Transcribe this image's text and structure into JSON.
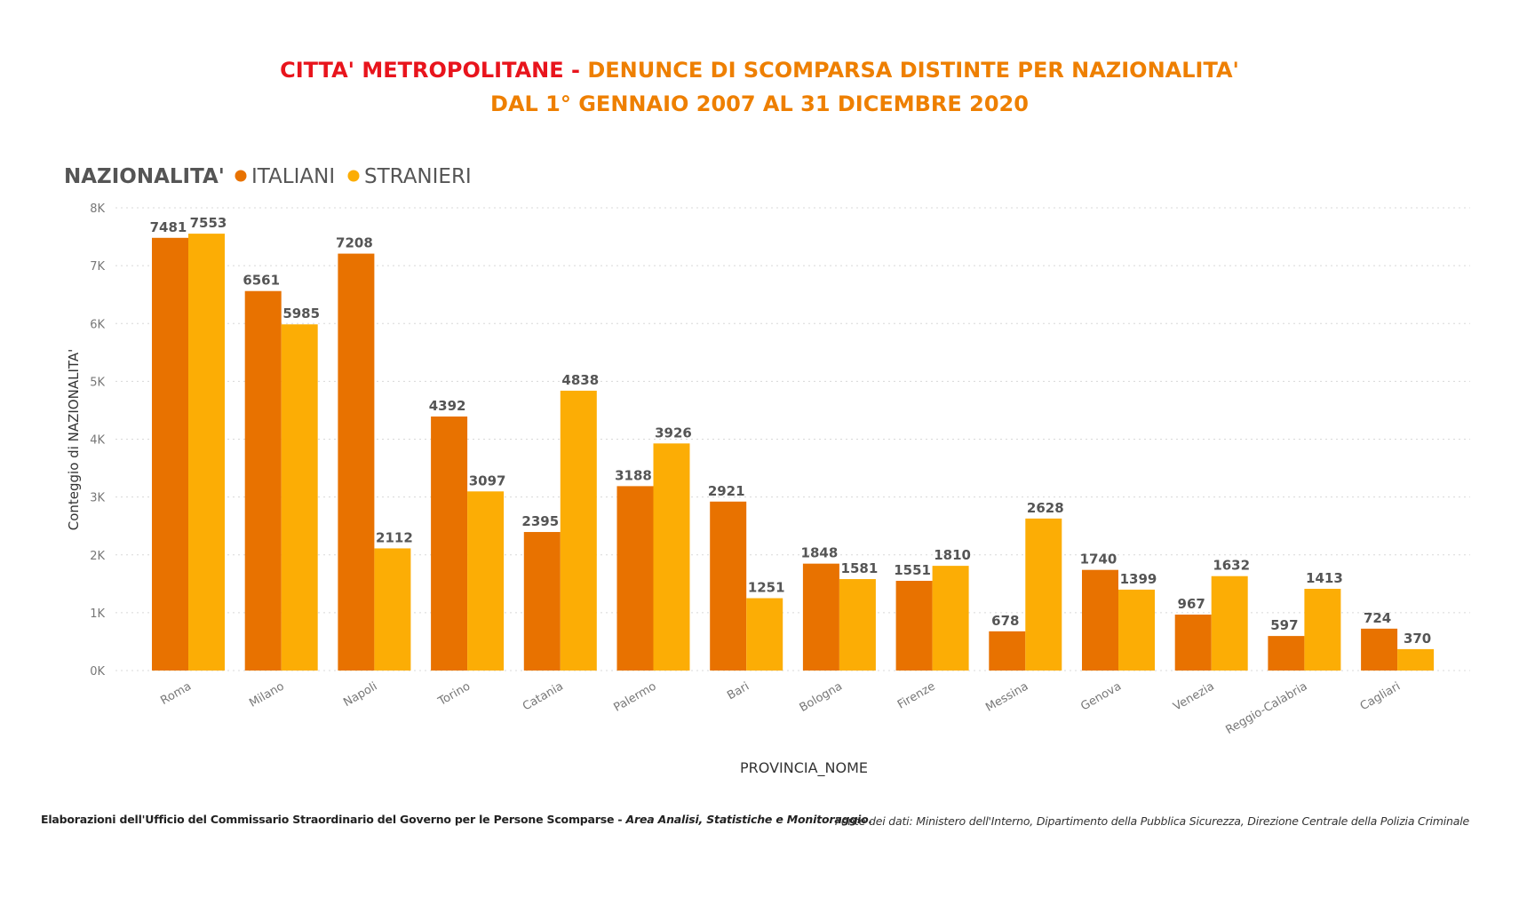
{
  "title": {
    "line1_part1": "CITTA' METROPOLITANE - ",
    "line1_part2": "DENUNCE DI SCOMPARSA  DISTINTE PER NAZIONALITA'",
    "line2": "DAL 1° GENNAIO 2007 AL 31 DICEMBRE  2020"
  },
  "colors": {
    "title_red": "#e8141c",
    "title_orange": "#ee7f00",
    "italiani": "#e87200",
    "stranieri": "#fcad05",
    "grid": "#d8d8d8",
    "text_dark": "#555555"
  },
  "footer": {
    "left_plain": "Elaborazioni dell'Ufficio del Commissario Straordinario  del Governo per le Persone Scomparse - ",
    "left_italic": "Area  Analisi, Statistiche  e Monitoraggio.",
    "right": "Fonte dei dati: Ministero dell'Interno, Dipartimento della Pubblica Sicurezza, Direzione Centrale della Polizia Criminale"
  },
  "chart_data": {
    "type": "bar",
    "legend_title": "NAZIONALITA'",
    "legend_position": "top-left",
    "xlabel": "PROVINCIA_NOME",
    "ylabel": "Conteggio di NAZIONALITA'",
    "ylim": [
      0,
      8000
    ],
    "yticks": [
      0,
      1000,
      2000,
      3000,
      4000,
      5000,
      6000,
      7000,
      8000
    ],
    "ytick_labels": [
      "0K",
      "1K",
      "2K",
      "3K",
      "4K",
      "5K",
      "6K",
      "7K",
      "8K"
    ],
    "grid": true,
    "categories": [
      "Roma",
      "Milano",
      "Napoli",
      "Torino",
      "Catania",
      "Palermo",
      "Bari",
      "Bologna",
      "Firenze",
      "Messina",
      "Genova",
      "Venezia",
      "Reggio-Calabria",
      "Cagliari"
    ],
    "series": [
      {
        "name": "ITALIANI",
        "values": [
          7481,
          6561,
          7208,
          4392,
          2395,
          3188,
          2921,
          1848,
          1551,
          678,
          1740,
          967,
          597,
          724
        ]
      },
      {
        "name": "STRANIERI",
        "values": [
          7553,
          5985,
          2112,
          3097,
          4838,
          3926,
          1251,
          1581,
          1810,
          2628,
          1399,
          1632,
          1413,
          370
        ]
      }
    ]
  }
}
